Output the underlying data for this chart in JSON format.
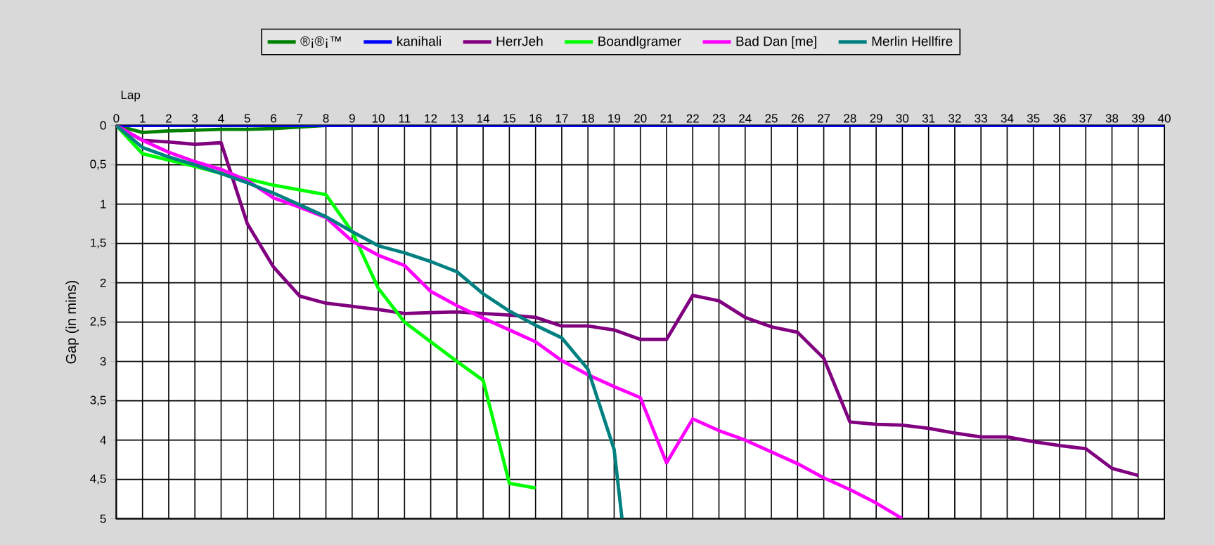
{
  "chart_data": {
    "type": "line",
    "xlabel": "Lap",
    "ylabel": "Gap (in mins)",
    "xlim": [
      0,
      40
    ],
    "ylim": [
      5,
      0
    ],
    "xticks": [
      0,
      1,
      2,
      3,
      4,
      5,
      6,
      7,
      8,
      9,
      10,
      11,
      12,
      13,
      14,
      15,
      16,
      17,
      18,
      19,
      20,
      21,
      22,
      23,
      24,
      25,
      26,
      27,
      28,
      29,
      30,
      31,
      32,
      33,
      34,
      35,
      36,
      37,
      38,
      39,
      40
    ],
    "yticks": [
      0,
      {
        "value": 0.5,
        "label": "0,5"
      },
      1,
      {
        "value": 1.5,
        "label": "1,5"
      },
      2,
      {
        "value": 2.5,
        "label": "2,5"
      },
      3,
      {
        "value": 3.5,
        "label": "3,5"
      },
      4,
      {
        "value": 4.5,
        "label": "4,5"
      },
      5
    ],
    "grid": true,
    "legend": "top",
    "line_style": "solid",
    "series": [
      {
        "name": "®¡®¡™",
        "color": "#008000",
        "x": [
          0,
          1,
          2,
          3,
          4,
          5,
          6,
          7,
          8
        ],
        "values": [
          0,
          0.09,
          0.07,
          0.06,
          0.05,
          0.05,
          0.04,
          0.02,
          0
        ]
      },
      {
        "name": "kanihali",
        "color": "#0000ff",
        "x": [
          0,
          1,
          2,
          3,
          4,
          5,
          6,
          7,
          8,
          9,
          10,
          11,
          12,
          13,
          14,
          15,
          16,
          17,
          18,
          19,
          20,
          21,
          22,
          23,
          24,
          25,
          26,
          27,
          28,
          29,
          30,
          31,
          32,
          33,
          34,
          35,
          36,
          37,
          38,
          39,
          40
        ],
        "values": [
          0,
          0,
          0,
          0,
          0,
          0,
          0,
          0,
          0,
          0,
          0,
          0,
          0,
          0,
          0,
          0,
          0,
          0,
          0,
          0,
          0,
          0,
          0,
          0,
          0,
          0,
          0,
          0,
          0,
          0,
          0,
          0,
          0,
          0,
          0,
          0,
          0,
          0,
          0,
          0,
          0
        ]
      },
      {
        "name": "HerrJeh",
        "color": "#800080",
        "x": [
          0,
          1,
          2,
          3,
          4,
          5,
          6,
          7,
          8,
          9,
          10,
          11,
          12,
          13,
          14,
          15,
          16,
          17,
          18,
          19,
          20,
          21,
          22,
          23,
          24,
          25,
          26,
          27,
          28,
          29,
          30,
          31,
          32,
          33,
          34,
          35,
          36,
          37,
          38,
          39
        ],
        "values": [
          0,
          0.19,
          0.21,
          0.24,
          0.22,
          1.25,
          1.8,
          2.17,
          2.26,
          2.3,
          2.34,
          2.39,
          2.38,
          2.37,
          2.39,
          2.41,
          2.44,
          2.55,
          2.55,
          2.6,
          2.72,
          2.72,
          2.16,
          2.23,
          2.44,
          2.56,
          2.63,
          2.96,
          3.77,
          3.8,
          3.81,
          3.85,
          3.91,
          3.96,
          3.96,
          4.02,
          4.07,
          4.11,
          4.36,
          4.45
        ]
      },
      {
        "name": "Boandlgramer",
        "color": "#00ff00",
        "x": [
          0,
          1,
          2,
          3,
          4,
          5,
          6,
          7,
          8,
          9,
          10,
          11,
          12,
          13,
          14,
          15,
          16
        ],
        "values": [
          0,
          0.36,
          0.44,
          0.52,
          0.61,
          0.68,
          0.76,
          0.82,
          0.88,
          1.35,
          2.07,
          2.5,
          2.75,
          3.0,
          3.24,
          4.55,
          4.61
        ]
      },
      {
        "name": "Bad Dan [me]",
        "color": "#ff00ff",
        "x": [
          0,
          1,
          2,
          3,
          4,
          5,
          6,
          7,
          8,
          9,
          10,
          11,
          12,
          13,
          14,
          15,
          16,
          17,
          18,
          19,
          20,
          21,
          22,
          23,
          24,
          25,
          26,
          27,
          28,
          29,
          30
        ],
        "values": [
          0,
          0.19,
          0.34,
          0.46,
          0.56,
          0.7,
          0.92,
          1.04,
          1.17,
          1.47,
          1.65,
          1.78,
          2.11,
          2.29,
          2.45,
          2.6,
          2.75,
          2.99,
          3.17,
          3.32,
          3.46,
          4.29,
          3.73,
          3.88,
          4.0,
          4.15,
          4.3,
          4.48,
          4.63,
          4.8,
          5.0
        ]
      },
      {
        "name": "Merlin Hellfire",
        "color": "#008080",
        "x": [
          0,
          1,
          2,
          3,
          4,
          5,
          6,
          7,
          8,
          9,
          10,
          11,
          12,
          13,
          14,
          15,
          16,
          17,
          18,
          19,
          19.3
        ],
        "values": [
          0,
          0.28,
          0.4,
          0.5,
          0.61,
          0.73,
          0.86,
          1.01,
          1.16,
          1.35,
          1.53,
          1.62,
          1.73,
          1.86,
          2.14,
          2.36,
          2.54,
          2.7,
          3.1,
          4.12,
          5.0
        ]
      }
    ]
  }
}
